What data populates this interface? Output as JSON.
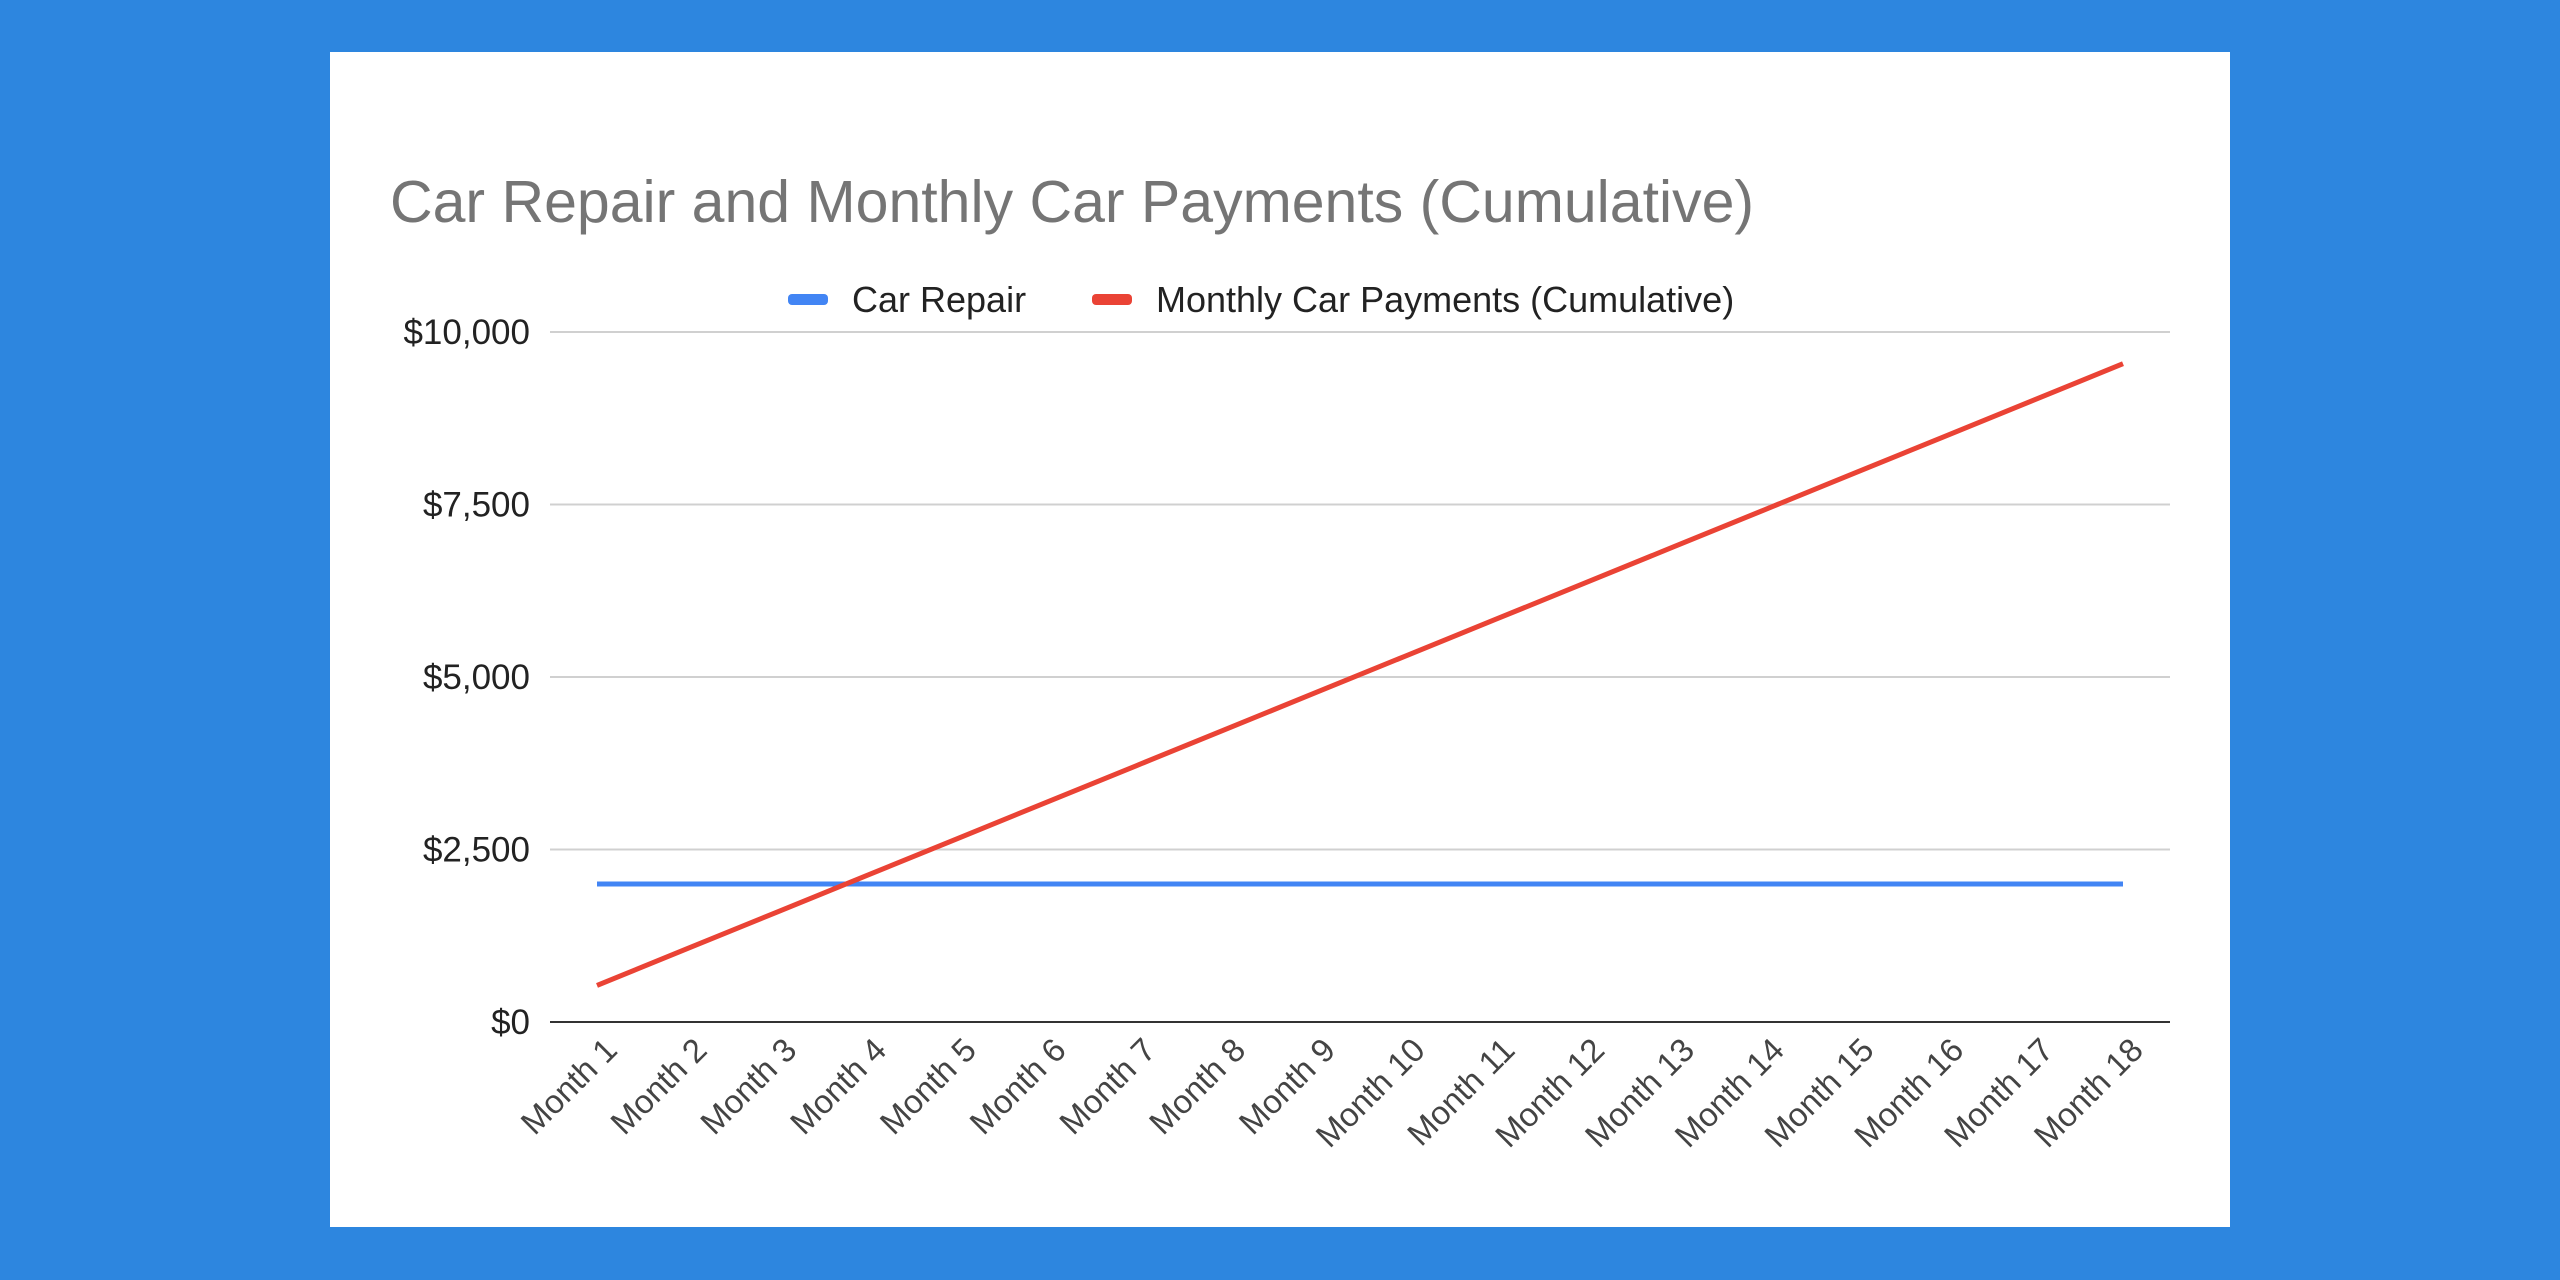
{
  "background_color": "#2d86df",
  "chart_data": {
    "type": "line",
    "title": "Car Repair and Monthly Car Payments (Cumulative)",
    "xlabel": "",
    "ylabel": "",
    "categories": [
      "Month 1",
      "Month 2",
      "Month 3",
      "Month 4",
      "Month 5",
      "Month 6",
      "Month 7",
      "Month 8",
      "Month 9",
      "Month 10",
      "Month 11",
      "Month 12",
      "Month 13",
      "Month 14",
      "Month 15",
      "Month 16",
      "Month 17",
      "Month 18"
    ],
    "y_ticks": [
      "$0",
      "$2,500",
      "$5,000",
      "$7,500",
      "$10,000"
    ],
    "y_tick_values": [
      0,
      2500,
      5000,
      7500,
      10000
    ],
    "ylim": [
      0,
      10000
    ],
    "grid": true,
    "legend_position": "top",
    "series": [
      {
        "name": "Car Repair",
        "color": "#4285f4",
        "values": [
          2000,
          2000,
          2000,
          2000,
          2000,
          2000,
          2000,
          2000,
          2000,
          2000,
          2000,
          2000,
          2000,
          2000,
          2000,
          2000,
          2000,
          2000
        ]
      },
      {
        "name": "Monthly Car Payments (Cumulative)",
        "color": "#ea4335",
        "values": [
          530,
          1060,
          1590,
          2120,
          2650,
          3180,
          3710,
          4240,
          4770,
          5300,
          5830,
          6360,
          6890,
          7420,
          7950,
          8480,
          9010,
          9540
        ]
      }
    ]
  }
}
